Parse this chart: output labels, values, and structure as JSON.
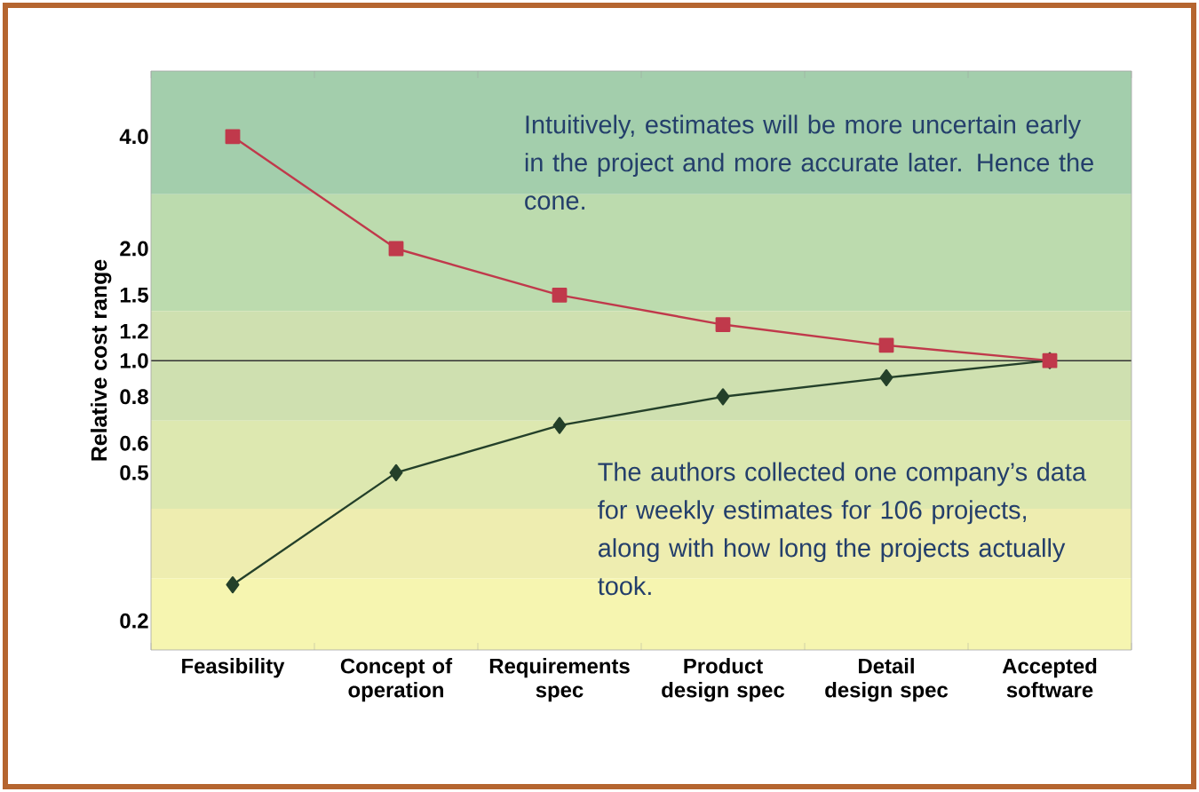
{
  "chart_data": {
    "type": "line",
    "ylabel": "Relative cost range",
    "categories": [
      "Feasibility",
      "Concept of operation",
      "Requirements spec",
      "Product design spec",
      "Detail design spec",
      "Accepted software"
    ],
    "series": [
      {
        "color": "#c0394b",
        "marker": "square",
        "values": [
          4.0,
          2.0,
          1.5,
          1.25,
          1.1,
          1.0
        ]
      },
      {
        "color": "#24402a",
        "marker": "diamond",
        "values": [
          0.25,
          0.5,
          0.67,
          0.8,
          0.9,
          1.0
        ]
      }
    ],
    "log": "y",
    "ylim": [
      0.167,
      6
    ],
    "yticks": [
      0.2,
      0.5,
      0.6,
      0.8,
      {
        "value": 1,
        "label": "1.0"
      },
      1.2,
      1.5,
      {
        "value": 2,
        "label": "2.0"
      },
      {
        "value": 4,
        "label": "4.0"
      }
    ],
    "bands": [
      {
        "axis": "y",
        "from": 2.8,
        "to": 6,
        "color": "#a3ceac"
      },
      {
        "axis": "y",
        "from": 1.36,
        "to": 2.8,
        "color": "#bcdbae"
      },
      {
        "axis": "y",
        "from": 0.69,
        "to": 1.36,
        "color": "#cfe0b0"
      },
      {
        "axis": "y",
        "from": 0.4,
        "to": 0.69,
        "color": "#dde8b0"
      },
      {
        "axis": "y",
        "from": 0.26,
        "to": 0.4,
        "color": "#eeedb0"
      },
      {
        "axis": "y",
        "from": 0.167,
        "to": 0.26,
        "color": "#f6f5b0"
      }
    ],
    "ref_lines": [
      {
        "axis": "y",
        "value": 1.0,
        "color": "#333333"
      }
    ],
    "annotations": [
      "Intuitively, estimates will be more uncertain early in the project and more accurate later. Hence the cone.",
      "The authors collected one company’s data for weekly estimates for 106 projects, along with how long the projects actually took."
    ],
    "grid": false,
    "line_style": "solid"
  }
}
